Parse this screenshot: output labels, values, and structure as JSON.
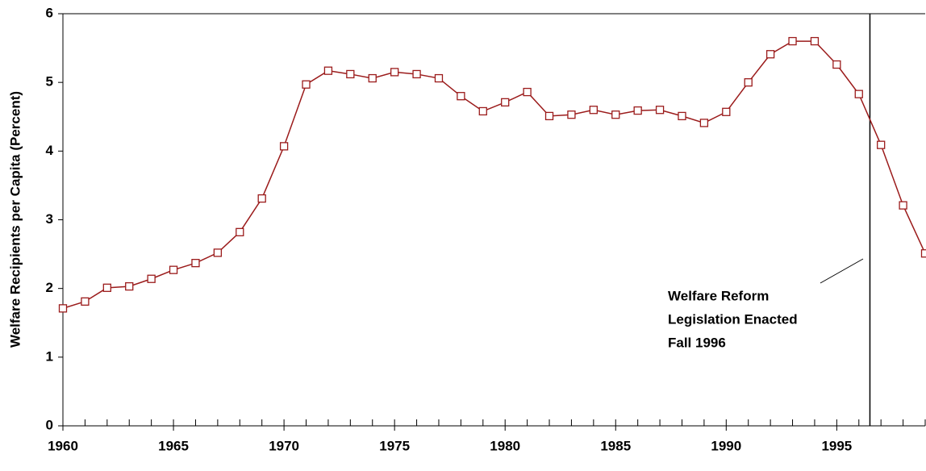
{
  "chart_data": {
    "type": "line",
    "y_label": "Welfare Recipients per Capita (Percent)",
    "x": [
      1960,
      1961,
      1962,
      1963,
      1964,
      1965,
      1966,
      1967,
      1968,
      1969,
      1970,
      1971,
      1972,
      1973,
      1974,
      1975,
      1976,
      1977,
      1978,
      1979,
      1980,
      1981,
      1982,
      1983,
      1984,
      1985,
      1986,
      1987,
      1988,
      1989,
      1990,
      1991,
      1992,
      1993,
      1994,
      1995,
      1996,
      1997,
      1998,
      1999
    ],
    "series": [
      {
        "color": "#9b1b1b",
        "values": [
          1.71,
          1.81,
          2.01,
          2.03,
          2.14,
          2.27,
          2.37,
          2.52,
          2.82,
          3.31,
          4.07,
          4.97,
          5.17,
          5.12,
          5.06,
          5.15,
          5.12,
          5.06,
          4.8,
          4.58,
          4.71,
          4.86,
          4.51,
          4.53,
          4.6,
          4.53,
          4.59,
          4.6,
          4.51,
          4.41,
          4.57,
          5.0,
          5.41,
          5.6,
          5.6,
          5.26,
          4.83,
          4.09,
          3.21,
          2.51
        ]
      }
    ],
    "xlim": [
      1960,
      1999
    ],
    "ylim": [
      0,
      6
    ],
    "xticks": [
      1960,
      1965,
      1970,
      1975,
      1980,
      1985,
      1990,
      1995
    ],
    "yticks": [
      0,
      1,
      2,
      3,
      4,
      5,
      6
    ],
    "annotation": {
      "x": 1996.5,
      "lines": [
        "Welfare Reform",
        "Legislation Enacted",
        "Fall 1996"
      ]
    }
  }
}
